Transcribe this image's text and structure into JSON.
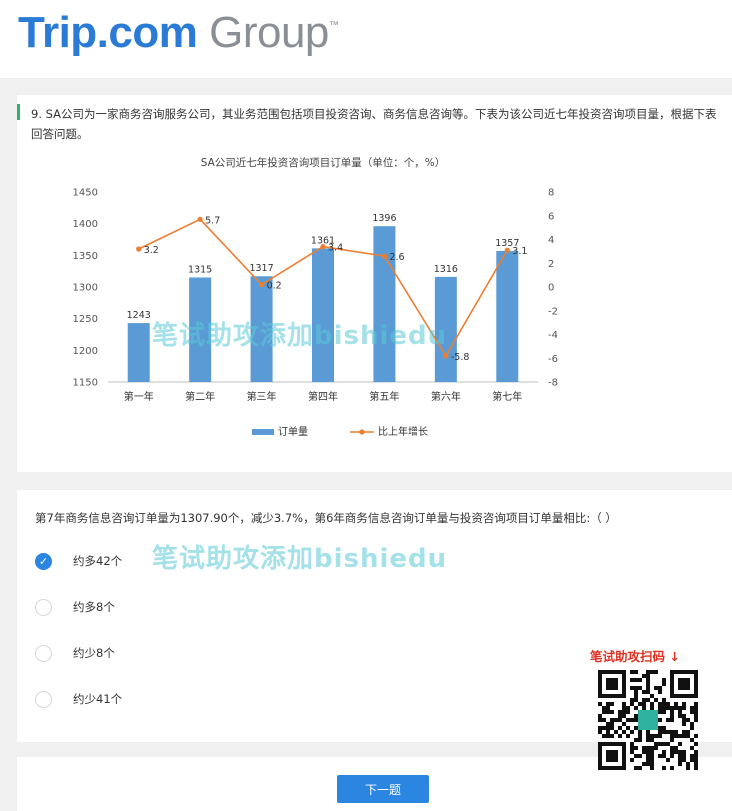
{
  "header": {
    "logo_part1": "Trip.com",
    "logo_part2": " Group",
    "logo_tm": "™"
  },
  "question": {
    "text": "9.   SA公司为一家商务咨询服务公司，其业务范围包括项目投资咨询、商务信息咨询等。下表为该公司近七年投资咨询项目量，根据下表回答问题。"
  },
  "chart_data": {
    "type": "bar+line",
    "title": "SA公司近七年投资咨询项目订单量（单位：个，%）",
    "categories": [
      "第一年",
      "第二年",
      "第三年",
      "第四年",
      "第五年",
      "第六年",
      "第七年"
    ],
    "series": [
      {
        "name": "订单量",
        "type": "bar",
        "axis": "left",
        "values": [
          1243,
          1315,
          1317,
          1361,
          1396,
          1316,
          1357
        ],
        "color": "#5b9bd5"
      },
      {
        "name": "比上年增长",
        "type": "line",
        "axis": "right",
        "values": [
          3.2,
          5.7,
          0.2,
          3.4,
          2.6,
          -5.8,
          3.1
        ],
        "color": "#ed7d31"
      }
    ],
    "y_left": {
      "min": 1150,
      "max": 1450,
      "ticks": [
        1150,
        1200,
        1250,
        1300,
        1350,
        1400,
        1450
      ]
    },
    "y_right": {
      "min": -8,
      "max": 8,
      "ticks": [
        -8,
        -6,
        -4,
        -2,
        0,
        2,
        4,
        6,
        8
      ]
    },
    "legend_position": "bottom"
  },
  "answer": {
    "text": "第7年商务信息咨询订单量为1307.90个，减少3.7%，第6年商务信息咨询订单量与投资咨询项目订单量相比:（    ）",
    "options": [
      {
        "label": "约多42个",
        "selected": true
      },
      {
        "label": "约多8个",
        "selected": false
      },
      {
        "label": "约少8个",
        "selected": false
      },
      {
        "label": "约少41个",
        "selected": false
      }
    ],
    "check_icon": "✓"
  },
  "footer": {
    "next_label": "下一题"
  },
  "watermarks": [
    "笔试助攻添加bishiedu",
    "笔试助攻添加bishiedu"
  ],
  "qr": {
    "label": "笔试助攻扫码 ↓"
  }
}
